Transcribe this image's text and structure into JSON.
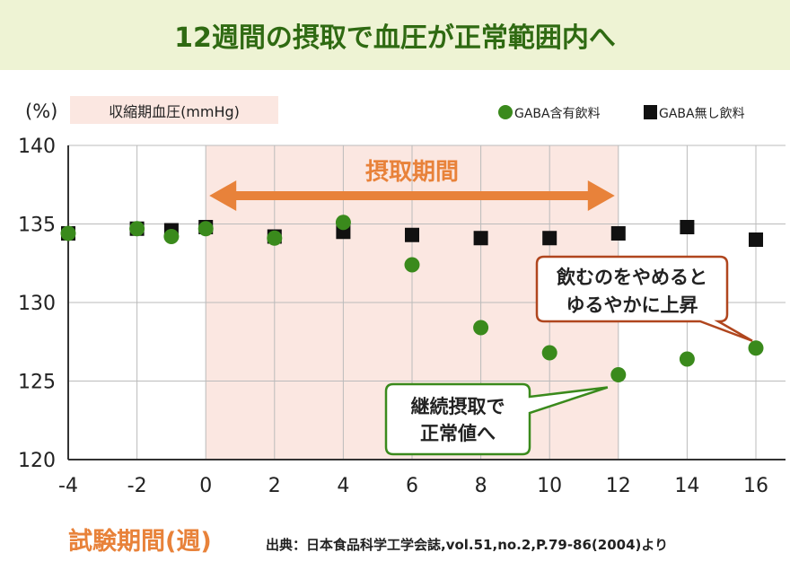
{
  "title": "12週間の摂取で血圧が正常範囲内へ",
  "colors": {
    "green": "#3a8a1c",
    "black": "#111111",
    "orange": "#e8823a",
    "shade": "#fbe7e1",
    "callout_brown": "#b0461e",
    "callout_green": "#3a8a1c"
  },
  "chart_data": {
    "type": "scatter",
    "ylabel_unit": "(%)",
    "metric_label": "収縮期血圧(mmHg)",
    "xlabel": "試験期間(週)",
    "source": "出典：日本食品科学工学会誌,vol.51,no.2,P.79-86(2004)より",
    "xlim": [
      -4,
      16
    ],
    "ylim": [
      120,
      140
    ],
    "x_ticks": [
      -4,
      -2,
      0,
      2,
      4,
      6,
      8,
      10,
      12,
      14,
      16
    ],
    "y_ticks": [
      120,
      125,
      130,
      135,
      140
    ],
    "grid": true,
    "legend_position": "top-right",
    "x": [
      -4,
      -2,
      -1,
      0,
      2,
      4,
      6,
      8,
      10,
      12,
      14,
      16
    ],
    "series": [
      {
        "name": "GABA含有飲料",
        "marker": "circle",
        "values": [
          134.4,
          134.7,
          134.2,
          134.7,
          134.1,
          135.1,
          132.4,
          128.4,
          126.8,
          125.4,
          126.4,
          127.1
        ]
      },
      {
        "name": "GABA無し飲料",
        "marker": "square",
        "values": [
          134.4,
          134.7,
          134.6,
          134.8,
          134.2,
          134.5,
          134.3,
          134.1,
          134.1,
          134.4,
          134.8,
          134.0
        ]
      }
    ],
    "intake_period": {
      "label": "摂取期間",
      "from": 0,
      "to": 12
    },
    "annotations": [
      {
        "lines": [
          "飲むのをやめると",
          "ゆるやかに上昇"
        ],
        "x": 16,
        "y": 127.1
      },
      {
        "lines": [
          "継続摂取で",
          "正常値へ"
        ],
        "x": 12,
        "y": 125.4
      }
    ]
  }
}
